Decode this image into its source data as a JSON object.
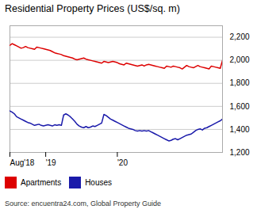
{
  "chart_data": {
    "type": "line",
    "title": "Residential Property Prices (US$/sq. m)",
    "source": "Source: encuentra24.com, Global Property Guide",
    "categories": [
      "Aug'18",
      null,
      null,
      null,
      null,
      null,
      null,
      null,
      null,
      null,
      null,
      null,
      null,
      null,
      null,
      null,
      "'19",
      null,
      null,
      null,
      null,
      null,
      null,
      null,
      null,
      null,
      null,
      null,
      null,
      null,
      null,
      null,
      null,
      null,
      null,
      null,
      null,
      null,
      null,
      null,
      null,
      null,
      null,
      null,
      null,
      null,
      null,
      null,
      "'20",
      null,
      null,
      null,
      null,
      null,
      null,
      null,
      null,
      null,
      null,
      null,
      null,
      null,
      null,
      null,
      null,
      null,
      null,
      null,
      null,
      null,
      null,
      null,
      null,
      null,
      null,
      null,
      null,
      null,
      null,
      null,
      null,
      null,
      null,
      null,
      null,
      null,
      null,
      null,
      null,
      null,
      null,
      null,
      null,
      null,
      null,
      null
    ],
    "series": [
      {
        "name": "Apartments",
        "color": "#dd0000",
        "values": [
          2130,
          2145,
          2135,
          2125,
          2115,
          2105,
          2110,
          2120,
          2110,
          2105,
          2100,
          2095,
          2115,
          2110,
          2105,
          2100,
          2095,
          2090,
          2085,
          2075,
          2065,
          2060,
          2055,
          2050,
          2040,
          2035,
          2030,
          2025,
          2020,
          2010,
          2005,
          2010,
          2015,
          2020,
          2010,
          2005,
          2000,
          1995,
          1990,
          1985,
          1980,
          1975,
          1990,
          1985,
          1980,
          1985,
          1990,
          1985,
          1980,
          1970,
          1965,
          1960,
          1975,
          1970,
          1965,
          1960,
          1955,
          1950,
          1955,
          1960,
          1950,
          1960,
          1965,
          1960,
          1955,
          1950,
          1945,
          1940,
          1935,
          1930,
          1950,
          1945,
          1940,
          1950,
          1945,
          1940,
          1935,
          1925,
          1940,
          1955,
          1945,
          1940,
          1935,
          1945,
          1955,
          1945,
          1940,
          1935,
          1930,
          1925,
          1950,
          1945,
          1940,
          1935,
          1930,
          2000
        ]
      },
      {
        "name": "Houses",
        "color": "#1a1aaa",
        "values": [
          1560,
          1550,
          1535,
          1510,
          1500,
          1490,
          1480,
          1470,
          1460,
          1455,
          1445,
          1435,
          1440,
          1445,
          1435,
          1430,
          1435,
          1440,
          1435,
          1430,
          1440,
          1435,
          1440,
          1435,
          1525,
          1535,
          1525,
          1510,
          1490,
          1470,
          1445,
          1430,
          1420,
          1415,
          1425,
          1415,
          1420,
          1430,
          1425,
          1435,
          1445,
          1455,
          1530,
          1520,
          1505,
          1490,
          1480,
          1470,
          1460,
          1450,
          1440,
          1430,
          1420,
          1410,
          1405,
          1400,
          1390,
          1385,
          1390,
          1385,
          1390,
          1385,
          1390,
          1380,
          1370,
          1360,
          1350,
          1340,
          1330,
          1320,
          1310,
          1300,
          1305,
          1315,
          1320,
          1310,
          1320,
          1330,
          1340,
          1350,
          1355,
          1360,
          1375,
          1390,
          1400,
          1405,
          1395,
          1410,
          1415,
          1425,
          1435,
          1445,
          1455,
          1465,
          1475,
          1490
        ]
      }
    ],
    "ylim": [
      1200,
      2300
    ],
    "yticks": [
      {
        "value": 1200,
        "label": "1,200"
      },
      {
        "value": 1400,
        "label": "1,400"
      },
      {
        "value": 1600,
        "label": "1,600"
      },
      {
        "value": 1800,
        "label": "1,800"
      },
      {
        "value": 2000,
        "label": "2,000"
      },
      {
        "value": 2200,
        "label": "2,200"
      }
    ],
    "grid": true,
    "legend": "bottom"
  }
}
